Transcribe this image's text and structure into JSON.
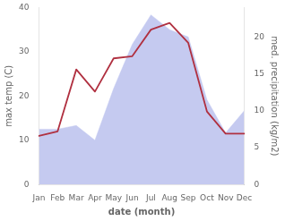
{
  "chart_data": {
    "type": "line",
    "xlabel": "date (month)",
    "ylabel": "max temp (C)",
    "y2label": "med. precipitation (kg/m2)",
    "categories": [
      "Jan",
      "Feb",
      "Mar",
      "Apr",
      "May",
      "Jun",
      "Jul",
      "Aug",
      "Sep",
      "Oct",
      "Nov",
      "Dec"
    ],
    "series": [
      {
        "type": "area",
        "axis": "y2",
        "color": "#c5caf0",
        "values": [
          7.5,
          7.5,
          8.0,
          6.0,
          13.0,
          19.0,
          23.0,
          21.0,
          20.0,
          11.5,
          7.0,
          10.0
        ]
      },
      {
        "type": "line",
        "color": "#b03040",
        "values": [
          11.0,
          12.0,
          26.0,
          21.0,
          28.5,
          29.0,
          35.0,
          36.5,
          32.0,
          16.5,
          11.5,
          11.5
        ]
      }
    ],
    "ylim": [
      0,
      40
    ],
    "yticks": [
      0,
      10,
      20,
      30,
      40
    ],
    "y2lim": [
      0,
      24
    ],
    "y2ticks": [
      0,
      5,
      10,
      15,
      20
    ],
    "grid": false
  }
}
